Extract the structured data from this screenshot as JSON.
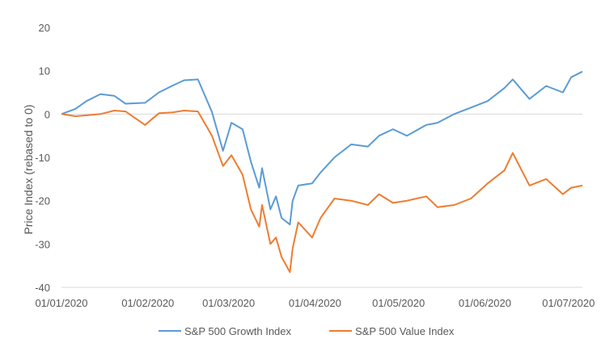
{
  "chart_data": {
    "type": "line",
    "title": "",
    "xlabel": "",
    "ylabel": "Price Index (rebased to 0)",
    "ylim": [
      -40,
      20
    ],
    "yticks": [
      20,
      10,
      0,
      -10,
      -20,
      -30,
      -40
    ],
    "xticks": [
      "01/01/2020",
      "01/02/2020",
      "01/03/2020",
      "01/04/2020",
      "01/05/2020",
      "01/06/2020",
      "01/07/2020"
    ],
    "grid": false,
    "legend": "bottom",
    "x": [
      "01/01/2020",
      "06/01/2020",
      "10/01/2020",
      "15/01/2020",
      "20/01/2020",
      "24/01/2020",
      "31/01/2020",
      "05/02/2020",
      "10/02/2020",
      "14/02/2020",
      "19/02/2020",
      "24/02/2020",
      "28/02/2020",
      "02/03/2020",
      "06/03/2020",
      "09/03/2020",
      "12/03/2020",
      "13/03/2020",
      "16/03/2020",
      "18/03/2020",
      "20/03/2020",
      "23/03/2020",
      "24/03/2020",
      "26/03/2020",
      "31/03/2020",
      "03/04/2020",
      "08/04/2020",
      "14/04/2020",
      "20/04/2020",
      "24/04/2020",
      "29/04/2020",
      "04/05/2020",
      "11/05/2020",
      "15/05/2020",
      "21/05/2020",
      "27/05/2020",
      "02/06/2020",
      "08/06/2020",
      "11/06/2020",
      "17/06/2020",
      "23/06/2020",
      "29/06/2020",
      "02/07/2020",
      "06/07/2020"
    ],
    "series": [
      {
        "name": "S&P 500 Growth Index",
        "color": "#5B9BD5",
        "values": [
          0.0,
          1.2,
          3.0,
          4.6,
          4.2,
          2.4,
          2.6,
          5.0,
          6.6,
          7.8,
          8.0,
          0.5,
          -8.5,
          -2.0,
          -3.5,
          -11.0,
          -17.0,
          -12.5,
          -22.0,
          -19.0,
          -24.0,
          -25.5,
          -20.0,
          -16.5,
          -16.0,
          -13.5,
          -10.0,
          -7.0,
          -7.5,
          -5.0,
          -3.5,
          -5.0,
          -2.5,
          -2.0,
          0.0,
          1.5,
          3.0,
          6.0,
          8.0,
          3.5,
          6.5,
          5.0,
          8.5,
          9.8
        ]
      },
      {
        "name": "S&P 500 Value Index",
        "color": "#ED7D31",
        "values": [
          0.0,
          -0.5,
          -0.3,
          0.0,
          0.8,
          0.6,
          -2.5,
          0.2,
          0.4,
          0.8,
          0.6,
          -5.0,
          -12.0,
          -9.5,
          -14.0,
          -22.0,
          -26.0,
          -21.0,
          -30.0,
          -28.5,
          -33.0,
          -36.5,
          -31.0,
          -25.0,
          -28.5,
          -24.0,
          -19.5,
          -20.0,
          -21.0,
          -18.5,
          -20.5,
          -20.0,
          -19.0,
          -21.5,
          -21.0,
          -19.5,
          -16.0,
          -13.0,
          -9.0,
          -16.5,
          -15.0,
          -18.5,
          -17.0,
          -16.5
        ]
      }
    ]
  }
}
